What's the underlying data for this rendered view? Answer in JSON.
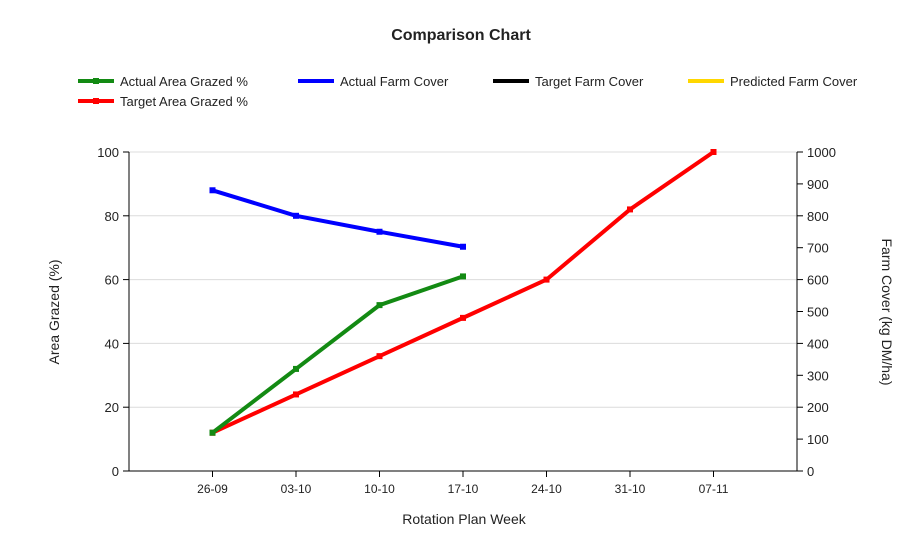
{
  "chart_data": {
    "type": "line",
    "title": "Comparison Chart",
    "xlabel": "Rotation Plan Week",
    "ylabel_left": "Area Grazed (%)",
    "ylabel_right": "Farm Cover (kg DM/ha)",
    "categories": [
      "26-09",
      "03-10",
      "10-10",
      "17-10",
      "24-10",
      "31-10",
      "07-11"
    ],
    "ylim_left": [
      0,
      100
    ],
    "yticks_left": [
      0,
      20,
      40,
      60,
      80,
      100
    ],
    "ylim_right": [
      0,
      1000
    ],
    "yticks_right": [
      0,
      100,
      200,
      300,
      400,
      500,
      600,
      700,
      800,
      900,
      1000
    ],
    "grid": true,
    "legend_position": "top",
    "legend": [
      {
        "name": "Actual Area Grazed %",
        "color": "#138a13",
        "marker": true
      },
      {
        "name": "Actual Farm Cover",
        "color": "#0000ff",
        "marker": false
      },
      {
        "name": "Target Farm Cover",
        "color": "#000000",
        "marker": false
      },
      {
        "name": "Predicted Farm Cover",
        "color": "#ffd700",
        "marker": false
      },
      {
        "name": "Target Area Grazed %",
        "color": "#ff0000",
        "marker": true
      }
    ],
    "series": [
      {
        "name": "Actual Area Grazed %",
        "axis": "left",
        "color": "#138a13",
        "values": [
          12,
          32,
          52,
          61,
          null,
          null,
          null
        ]
      },
      {
        "name": "Actual Farm Cover",
        "axis": "right",
        "color": "#0000ff",
        "values": [
          880,
          800,
          750,
          703,
          null,
          null,
          null
        ]
      },
      {
        "name": "Target Area Grazed %",
        "axis": "left",
        "color": "#ff0000",
        "values": [
          12,
          24,
          36,
          48,
          60,
          82,
          100
        ]
      },
      {
        "name": "Target Farm Cover",
        "axis": "right",
        "color": "#000000",
        "values": [
          null,
          null,
          null,
          null,
          null,
          null,
          null
        ]
      },
      {
        "name": "Predicted Farm Cover",
        "axis": "right",
        "color": "#ffd700",
        "values": [
          null,
          null,
          null,
          null,
          null,
          null,
          null
        ]
      }
    ]
  }
}
